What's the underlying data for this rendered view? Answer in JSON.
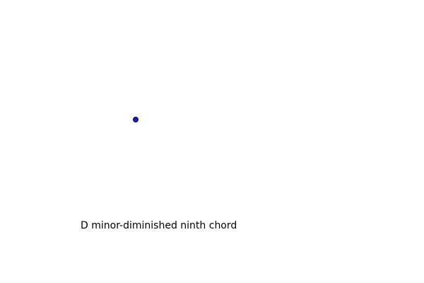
{
  "marker": {
    "fill_color": "#1f1fa8",
    "stroke_color": "#0a0a3c"
  },
  "caption": {
    "text": "D minor-diminished ninth chord"
  }
}
